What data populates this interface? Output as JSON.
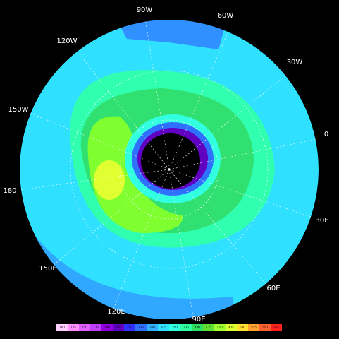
{
  "map": {
    "longitude_labels": [
      "90W",
      "60W",
      "30W",
      "0",
      "30E",
      "60E",
      "90E",
      "120E",
      "150E",
      "180",
      "150W",
      "120W"
    ],
    "colorbar": {
      "labels": [
        "100",
        "125",
        "150",
        "175",
        "200",
        "225",
        "250",
        "275",
        "300",
        "325",
        "350",
        "375",
        "400",
        "425",
        "450",
        "475",
        "500",
        "525",
        "550",
        "575"
      ],
      "colors": [
        "#ffd0ff",
        "#ff90ff",
        "#e060ff",
        "#c040ff",
        "#9000e0",
        "#6000c0",
        "#3030ff",
        "#3070ff",
        "#30b0ff",
        "#30e0ff",
        "#30ffe0",
        "#30ffa0",
        "#30e060",
        "#60e030",
        "#a0ff30",
        "#e0ff30",
        "#ffe030",
        "#ffa030",
        "#ff6030",
        "#ff2020"
      ]
    }
  }
}
